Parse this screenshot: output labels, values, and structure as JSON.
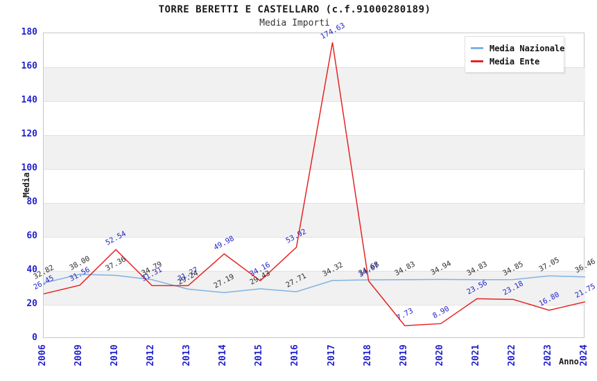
{
  "chart_data": {
    "type": "line",
    "title": "TORRE BERETTI E CASTELLARO (c.f.91000280189)",
    "subtitle": "Media Importi",
    "xlabel": "Anno",
    "ylabel": "Media",
    "categories": [
      "2006",
      "2009",
      "2010",
      "2012",
      "2013",
      "2014",
      "2015",
      "2016",
      "2017",
      "2018",
      "2019",
      "2020",
      "2021",
      "2022",
      "2023",
      "2024"
    ],
    "series": [
      {
        "name": "Media Nazionale",
        "color": "#7fb2e5",
        "label_color": "#2e2e2e",
        "values": [
          32.82,
          38.0,
          37.36,
          34.79,
          29.24,
          27.19,
          29.43,
          27.71,
          34.32,
          34.68,
          34.83,
          34.94,
          34.83,
          34.85,
          37.05,
          36.46
        ]
      },
      {
        "name": "Media Ente",
        "color": "#e62222",
        "label_color": "#2424c8",
        "values": [
          26.45,
          31.56,
          52.54,
          31.31,
          31.27,
          49.98,
          34.16,
          53.92,
          174.63,
          34.07,
          7.73,
          8.9,
          23.56,
          23.18,
          16.8,
          21.75
        ]
      }
    ],
    "ylim": [
      0,
      180
    ],
    "ytick_step": 20,
    "grid": "horizontal-bands",
    "band_color": "#f1f1f1",
    "tick_color": "#2323cc",
    "legend_position": "top-right"
  }
}
